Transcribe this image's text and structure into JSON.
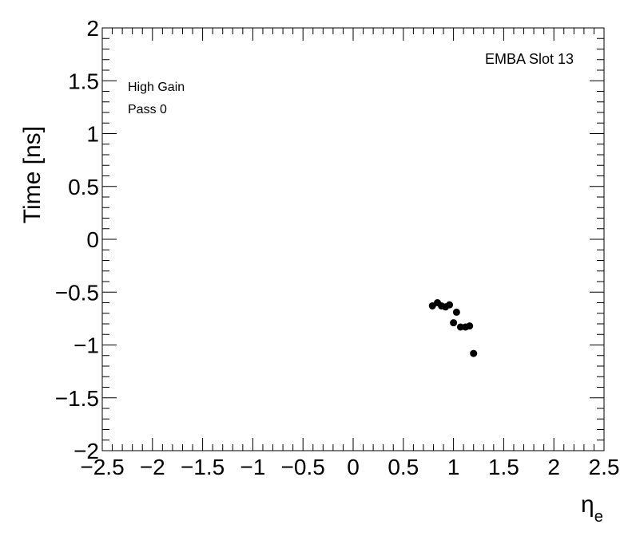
{
  "chart_data": {
    "type": "scatter",
    "annotations": [
      "EMBA Slot 13",
      "High Gain",
      "Pass 0"
    ],
    "y_label": "Time [ns]",
    "x_label": "η",
    "x_label_subscript": "e",
    "color": "#000000",
    "x": [
      0.79,
      0.84,
      0.88,
      0.92,
      0.96,
      1.0,
      1.03,
      1.07,
      1.12,
      1.16,
      1.2
    ],
    "values": [
      -0.63,
      -0.6,
      -0.63,
      -0.64,
      -0.62,
      -0.79,
      -0.69,
      -0.83,
      -0.83,
      -0.82,
      -1.08
    ],
    "xlim": [
      -2.5,
      2.5
    ],
    "ylim": [
      -2,
      2
    ],
    "xticks": [
      {
        "value": -2.5,
        "label": "−2.5"
      },
      {
        "value": -2,
        "label": "−2"
      },
      {
        "value": -1.5,
        "label": "−1.5"
      },
      {
        "value": -1,
        "label": "−1"
      },
      {
        "value": -0.5,
        "label": "−0.5"
      },
      0,
      0.5,
      1,
      1.5,
      2,
      2.5
    ],
    "yticks": [
      {
        "value": -2,
        "label": "−2"
      },
      {
        "value": -1.5,
        "label": "−1.5"
      },
      {
        "value": -1,
        "label": "−1"
      },
      {
        "value": -0.5,
        "label": "−0.5"
      },
      0,
      0.5,
      1,
      1.5,
      2
    ]
  }
}
